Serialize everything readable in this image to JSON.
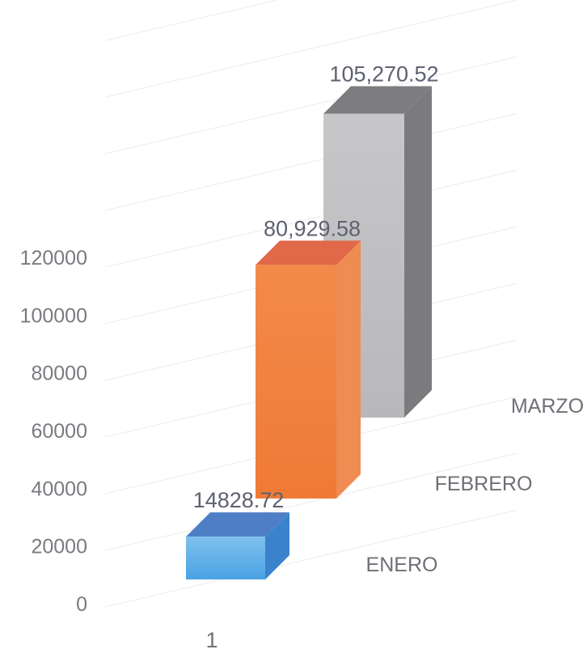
{
  "chart_data": {
    "type": "bar",
    "variant": "3d-column",
    "title": "",
    "xlabel": "",
    "ylabel": "",
    "categories": [
      "1"
    ],
    "ylim": [
      0,
      120000
    ],
    "yticks": [
      "0",
      "20000",
      "40000",
      "60000",
      "80000",
      "100000",
      "120000"
    ],
    "grid": true,
    "series": [
      {
        "name": "ENERO",
        "values": [
          14828.72
        ],
        "value_label": "14828.72",
        "color": "#5b9bd5"
      },
      {
        "name": "FEBRERO",
        "values": [
          80929.58
        ],
        "value_label": "80,929.58",
        "color": "#ed7d31"
      },
      {
        "name": "MARZO",
        "values": [
          105270.52
        ],
        "value_label": "105,270.52",
        "color": "#a5a5a5"
      }
    ]
  }
}
